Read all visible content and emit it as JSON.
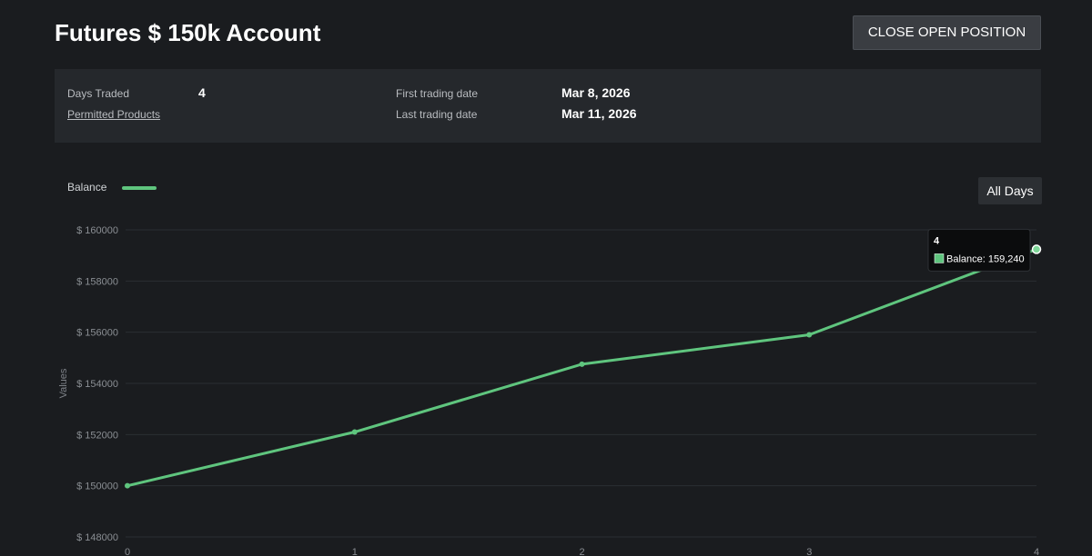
{
  "header": {
    "title": "Futures $ 150k Account",
    "close_button_label": "CLOSE OPEN POSITION"
  },
  "summary": {
    "days_traded_label": "Days Traded",
    "days_traded_value": "4",
    "permitted_products_link": "Permitted Products",
    "first_date_label": "First trading date",
    "first_date_value": "Mar 8, 2026",
    "last_date_label": "Last trading date",
    "last_date_value": "Mar 11, 2026"
  },
  "chart_controls": {
    "range_button_label": "All Days"
  },
  "colors": {
    "series": "#5fc57e",
    "background": "#1a1c1f",
    "panel": "#25282c"
  },
  "chart_data": {
    "type": "line",
    "title": "",
    "xlabel": "",
    "ylabel": "Values",
    "x": [
      0,
      1,
      2,
      3,
      4
    ],
    "series": [
      {
        "name": "Balance",
        "values": [
          150000,
          152100,
          154750,
          155900,
          159240
        ]
      }
    ],
    "ylim": [
      148000,
      160000
    ],
    "y_ticks": [
      148000,
      150000,
      152000,
      154000,
      156000,
      158000,
      160000
    ],
    "y_tick_prefix": "$ ",
    "x_ticks": [
      0,
      1,
      2,
      3,
      4
    ],
    "grid": true,
    "legend": "top-left",
    "tooltip": {
      "x_label": "4",
      "series_name": "Balance",
      "value_text": "159,240"
    }
  }
}
